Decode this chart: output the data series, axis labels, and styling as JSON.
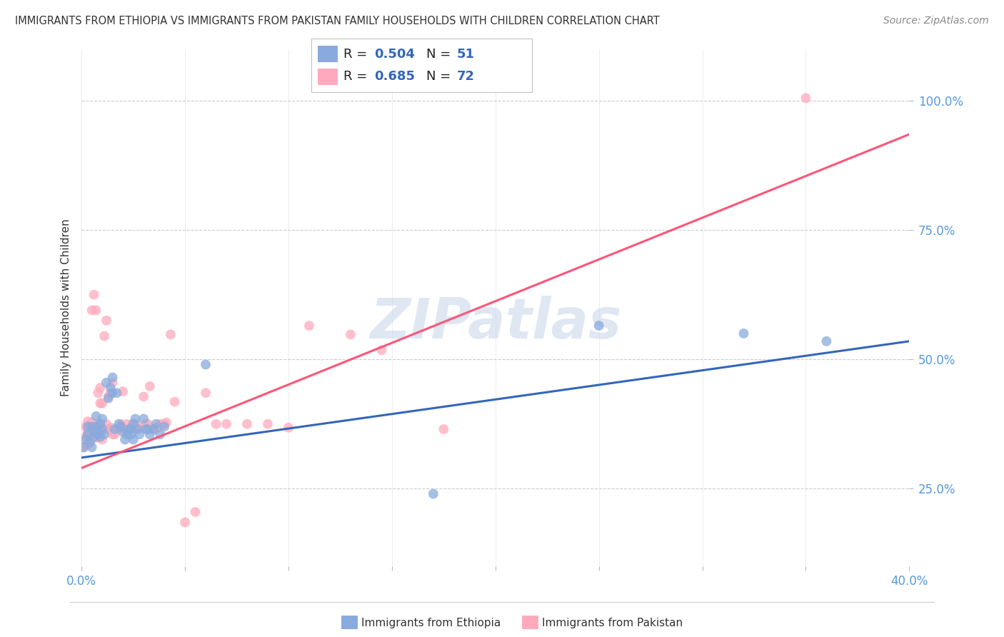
{
  "title": "IMMIGRANTS FROM ETHIOPIA VS IMMIGRANTS FROM PAKISTAN FAMILY HOUSEHOLDS WITH CHILDREN CORRELATION CHART",
  "source": "Source: ZipAtlas.com",
  "ylabel": "Family Households with Children",
  "xlim": [
    0.0,
    0.4
  ],
  "ylim": [
    0.1,
    1.1
  ],
  "xticks": [
    0.0,
    0.05,
    0.1,
    0.15,
    0.2,
    0.25,
    0.3,
    0.35,
    0.4
  ],
  "yticks": [
    0.25,
    0.5,
    0.75,
    1.0
  ],
  "watermark": "ZIPatlas",
  "blue_color": "#88AADD",
  "pink_color": "#FFAABC",
  "blue_line_color": "#3366BB",
  "pink_line_color": "#FF5577",
  "R_blue": 0.504,
  "N_blue": 51,
  "R_pink": 0.685,
  "N_pink": 72,
  "blue_scatter_x": [
    0.001,
    0.002,
    0.003,
    0.003,
    0.004,
    0.005,
    0.005,
    0.006,
    0.006,
    0.007,
    0.007,
    0.008,
    0.008,
    0.009,
    0.009,
    0.01,
    0.01,
    0.011,
    0.012,
    0.013,
    0.014,
    0.015,
    0.015,
    0.016,
    0.017,
    0.018,
    0.019,
    0.02,
    0.021,
    0.022,
    0.023,
    0.024,
    0.024,
    0.025,
    0.025,
    0.026,
    0.027,
    0.028,
    0.03,
    0.031,
    0.032,
    0.033,
    0.035,
    0.036,
    0.038,
    0.04,
    0.06,
    0.17,
    0.25,
    0.32,
    0.36
  ],
  "blue_scatter_y": [
    0.33,
    0.345,
    0.355,
    0.37,
    0.34,
    0.33,
    0.37,
    0.35,
    0.36,
    0.39,
    0.37,
    0.355,
    0.36,
    0.35,
    0.375,
    0.365,
    0.385,
    0.355,
    0.455,
    0.425,
    0.445,
    0.435,
    0.465,
    0.365,
    0.435,
    0.375,
    0.37,
    0.36,
    0.345,
    0.355,
    0.365,
    0.365,
    0.355,
    0.345,
    0.375,
    0.385,
    0.365,
    0.355,
    0.385,
    0.365,
    0.365,
    0.355,
    0.365,
    0.375,
    0.355,
    0.37,
    0.49,
    0.24,
    0.565,
    0.55,
    0.535
  ],
  "pink_scatter_x": [
    0.001,
    0.002,
    0.002,
    0.003,
    0.003,
    0.003,
    0.004,
    0.004,
    0.005,
    0.005,
    0.005,
    0.006,
    0.006,
    0.006,
    0.007,
    0.007,
    0.007,
    0.008,
    0.008,
    0.009,
    0.009,
    0.009,
    0.01,
    0.01,
    0.011,
    0.011,
    0.012,
    0.012,
    0.013,
    0.013,
    0.014,
    0.014,
    0.015,
    0.015,
    0.016,
    0.017,
    0.018,
    0.019,
    0.02,
    0.021,
    0.022,
    0.023,
    0.024,
    0.025,
    0.026,
    0.027,
    0.028,
    0.03,
    0.031,
    0.032,
    0.033,
    0.035,
    0.036,
    0.037,
    0.038,
    0.04,
    0.041,
    0.043,
    0.045,
    0.05,
    0.055,
    0.06,
    0.065,
    0.07,
    0.08,
    0.09,
    0.1,
    0.11,
    0.13,
    0.145,
    0.175,
    0.35
  ],
  "pink_scatter_y": [
    0.33,
    0.35,
    0.37,
    0.335,
    0.38,
    0.36,
    0.345,
    0.368,
    0.348,
    0.378,
    0.595,
    0.355,
    0.365,
    0.625,
    0.348,
    0.595,
    0.365,
    0.355,
    0.435,
    0.375,
    0.415,
    0.445,
    0.345,
    0.415,
    0.365,
    0.545,
    0.375,
    0.575,
    0.365,
    0.428,
    0.435,
    0.368,
    0.355,
    0.455,
    0.355,
    0.365,
    0.365,
    0.375,
    0.438,
    0.365,
    0.375,
    0.365,
    0.368,
    0.375,
    0.375,
    0.368,
    0.368,
    0.428,
    0.375,
    0.375,
    0.448,
    0.365,
    0.368,
    0.368,
    0.375,
    0.375,
    0.378,
    0.548,
    0.418,
    0.185,
    0.205,
    0.435,
    0.375,
    0.375,
    0.375,
    0.375,
    0.368,
    0.565,
    0.548,
    0.518,
    0.365,
    1.005
  ],
  "blue_trend_x": [
    0.0,
    0.4
  ],
  "blue_trend_y": [
    0.31,
    0.535
  ],
  "pink_trend_x": [
    0.0,
    0.4
  ],
  "pink_trend_y": [
    0.29,
    0.935
  ],
  "legend_blue_label": "Immigrants from Ethiopia",
  "legend_pink_label": "Immigrants from Pakistan",
  "background_color": "#FFFFFF",
  "grid_color": "#CCCCCC"
}
